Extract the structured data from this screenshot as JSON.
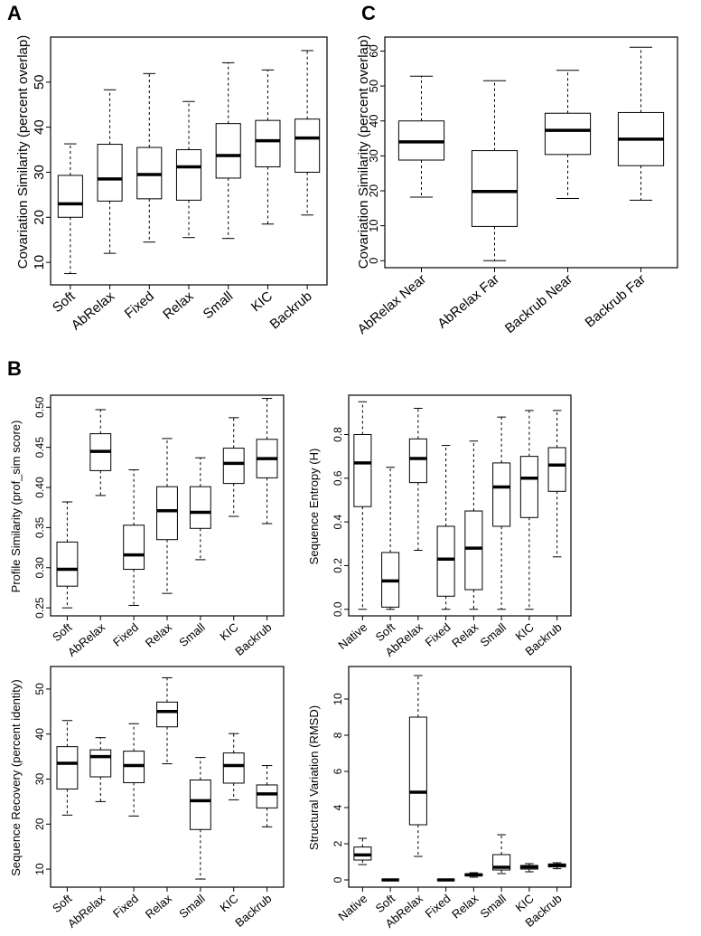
{
  "panel_labels": {
    "a": "A",
    "b": "B",
    "c": "C"
  },
  "chart_data": [
    {
      "id": "A",
      "type": "boxplot",
      "title": "",
      "xlabel": "",
      "ylabel": "Covariation Similarity (percent overlap)",
      "ylim": [
        5,
        60
      ],
      "yticks": [
        10,
        20,
        30,
        40,
        50
      ],
      "categories": [
        "Soft",
        "AbRelax",
        "Fixed",
        "Relax",
        "Small",
        "KIC",
        "Backrub"
      ],
      "boxes": [
        {
          "min": 7.5,
          "q1": 20.0,
          "median": 23.0,
          "q3": 29.3,
          "max": 36.3
        },
        {
          "min": 12.0,
          "q1": 23.6,
          "median": 28.5,
          "q3": 36.2,
          "max": 48.3
        },
        {
          "min": 14.5,
          "q1": 24.1,
          "median": 29.5,
          "q3": 35.5,
          "max": 51.9
        },
        {
          "min": 15.5,
          "q1": 23.8,
          "median": 31.2,
          "q3": 35.0,
          "max": 45.7
        },
        {
          "min": 15.3,
          "q1": 28.7,
          "median": 33.7,
          "q3": 40.8,
          "max": 54.3
        },
        {
          "min": 18.5,
          "q1": 31.2,
          "median": 37.0,
          "q3": 41.5,
          "max": 52.7
        },
        {
          "min": 20.5,
          "q1": 30.0,
          "median": 37.6,
          "q3": 41.8,
          "max": 57.0
        }
      ]
    },
    {
      "id": "C",
      "type": "boxplot",
      "title": "",
      "xlabel": "",
      "ylabel": "Covariation Similarity (percent overlap)",
      "ylim": [
        -2,
        64
      ],
      "yticks": [
        0,
        10,
        20,
        30,
        40,
        50,
        60
      ],
      "categories": [
        "AbRelax Near",
        "AbRelax Far",
        "Backrub Near",
        "Backrub Far"
      ],
      "boxes": [
        {
          "min": 18.2,
          "q1": 28.8,
          "median": 34.0,
          "q3": 40.0,
          "max": 52.8
        },
        {
          "min": 0.0,
          "q1": 9.8,
          "median": 19.8,
          "q3": 31.5,
          "max": 51.5
        },
        {
          "min": 17.8,
          "q1": 30.4,
          "median": 37.3,
          "q3": 42.2,
          "max": 54.5
        },
        {
          "min": 17.3,
          "q1": 27.2,
          "median": 34.8,
          "q3": 42.4,
          "max": 61.1
        }
      ]
    },
    {
      "id": "B1",
      "type": "boxplot",
      "title": "",
      "xlabel": "",
      "ylabel": "Profile Similarity (prof_sim score)",
      "ylim": [
        0.24,
        0.515
      ],
      "yticks": [
        0.25,
        0.3,
        0.35,
        0.4,
        0.45,
        0.5
      ],
      "ytick_labels": [
        "0.25",
        "0.30",
        "0.35",
        "0.40",
        "0.45",
        "0.50"
      ],
      "categories": [
        "Soft",
        "AbRelax",
        "Fixed",
        "Relax",
        "Small",
        "KIC",
        "Backrub"
      ],
      "boxes": [
        {
          "min": 0.25,
          "q1": 0.277,
          "median": 0.298,
          "q3": 0.332,
          "max": 0.382
        },
        {
          "min": 0.39,
          "q1": 0.421,
          "median": 0.445,
          "q3": 0.467,
          "max": 0.497
        },
        {
          "min": 0.253,
          "q1": 0.298,
          "median": 0.316,
          "q3": 0.353,
          "max": 0.422
        },
        {
          "min": 0.268,
          "q1": 0.335,
          "median": 0.371,
          "q3": 0.401,
          "max": 0.461
        },
        {
          "min": 0.31,
          "q1": 0.349,
          "median": 0.369,
          "q3": 0.401,
          "max": 0.437
        },
        {
          "min": 0.364,
          "q1": 0.405,
          "median": 0.43,
          "q3": 0.449,
          "max": 0.487
        },
        {
          "min": 0.355,
          "q1": 0.412,
          "median": 0.436,
          "q3": 0.46,
          "max": 0.511
        }
      ]
    },
    {
      "id": "B2",
      "type": "boxplot",
      "title": "",
      "xlabel": "",
      "ylabel": "Sequence Entropy (H)",
      "ylim": [
        -0.03,
        0.98
      ],
      "yticks": [
        0.0,
        0.2,
        0.4,
        0.6,
        0.8
      ],
      "ytick_labels": [
        "0.0",
        "0.2",
        "0.4",
        "0.6",
        "0.8"
      ],
      "categories": [
        "Native",
        "Soft",
        "AbRelax",
        "Fixed",
        "Relax",
        "Small",
        "KIC",
        "Backrub"
      ],
      "boxes": [
        {
          "min": 0.0,
          "q1": 0.47,
          "median": 0.67,
          "q3": 0.8,
          "max": 0.95
        },
        {
          "min": 0.0,
          "q1": 0.01,
          "median": 0.13,
          "q3": 0.26,
          "max": 0.65
        },
        {
          "min": 0.27,
          "q1": 0.58,
          "median": 0.69,
          "q3": 0.78,
          "max": 0.92
        },
        {
          "min": 0.0,
          "q1": 0.06,
          "median": 0.23,
          "q3": 0.38,
          "max": 0.75
        },
        {
          "min": 0.0,
          "q1": 0.09,
          "median": 0.28,
          "q3": 0.45,
          "max": 0.77
        },
        {
          "min": 0.0,
          "q1": 0.38,
          "median": 0.56,
          "q3": 0.67,
          "max": 0.88
        },
        {
          "min": 0.0,
          "q1": 0.42,
          "median": 0.6,
          "q3": 0.7,
          "max": 0.91
        },
        {
          "min": 0.24,
          "q1": 0.54,
          "median": 0.66,
          "q3": 0.74,
          "max": 0.91
        }
      ]
    },
    {
      "id": "B3",
      "type": "boxplot",
      "title": "",
      "xlabel": "",
      "ylabel": "Sequence Recovery (percent identity)",
      "ylim": [
        6,
        55
      ],
      "yticks": [
        10,
        20,
        30,
        40,
        50
      ],
      "categories": [
        "Soft",
        "AbRelax",
        "Fixed",
        "Relax",
        "Small",
        "KIC",
        "Backrub"
      ],
      "boxes": [
        {
          "min": 22.0,
          "q1": 27.8,
          "median": 33.5,
          "q3": 37.2,
          "max": 43.0
        },
        {
          "min": 25.0,
          "q1": 30.5,
          "median": 35.0,
          "q3": 36.5,
          "max": 39.2
        },
        {
          "min": 21.8,
          "q1": 29.2,
          "median": 33.0,
          "q3": 36.2,
          "max": 42.3
        },
        {
          "min": 33.4,
          "q1": 41.6,
          "median": 45.0,
          "q3": 47.1,
          "max": 52.5
        },
        {
          "min": 7.8,
          "q1": 18.8,
          "median": 25.2,
          "q3": 29.8,
          "max": 34.8
        },
        {
          "min": 25.4,
          "q1": 29.1,
          "median": 33.0,
          "q3": 35.8,
          "max": 40.1
        },
        {
          "min": 19.4,
          "q1": 23.6,
          "median": 26.7,
          "q3": 28.7,
          "max": 33.0
        }
      ]
    },
    {
      "id": "B4",
      "type": "boxplot",
      "title": "",
      "xlabel": "",
      "ylabel": "Structural Variation (RMSD)",
      "ylim": [
        -0.4,
        11.8
      ],
      "yticks": [
        0,
        2,
        4,
        6,
        8,
        10
      ],
      "categories": [
        "Native",
        "Soft",
        "AbRelax",
        "Fixed",
        "Relax",
        "Small",
        "KIC",
        "Backrub"
      ],
      "boxes": [
        {
          "min": 0.85,
          "q1": 1.1,
          "median": 1.38,
          "q3": 1.82,
          "max": 2.3
        },
        {
          "min": 0.0,
          "q1": 0.0,
          "median": 0.0,
          "q3": 0.0,
          "max": 0.0
        },
        {
          "min": 1.3,
          "q1": 3.05,
          "median": 4.85,
          "q3": 9.0,
          "max": 11.3
        },
        {
          "min": 0.0,
          "q1": 0.0,
          "median": 0.0,
          "q3": 0.0,
          "max": 0.0
        },
        {
          "min": 0.15,
          "q1": 0.22,
          "median": 0.28,
          "q3": 0.34,
          "max": 0.4
        },
        {
          "min": 0.35,
          "q1": 0.55,
          "median": 0.7,
          "q3": 1.4,
          "max": 2.5
        },
        {
          "min": 0.45,
          "q1": 0.6,
          "median": 0.72,
          "q3": 0.8,
          "max": 0.9
        },
        {
          "min": 0.62,
          "q1": 0.72,
          "median": 0.82,
          "q3": 0.88,
          "max": 0.95
        }
      ]
    }
  ]
}
